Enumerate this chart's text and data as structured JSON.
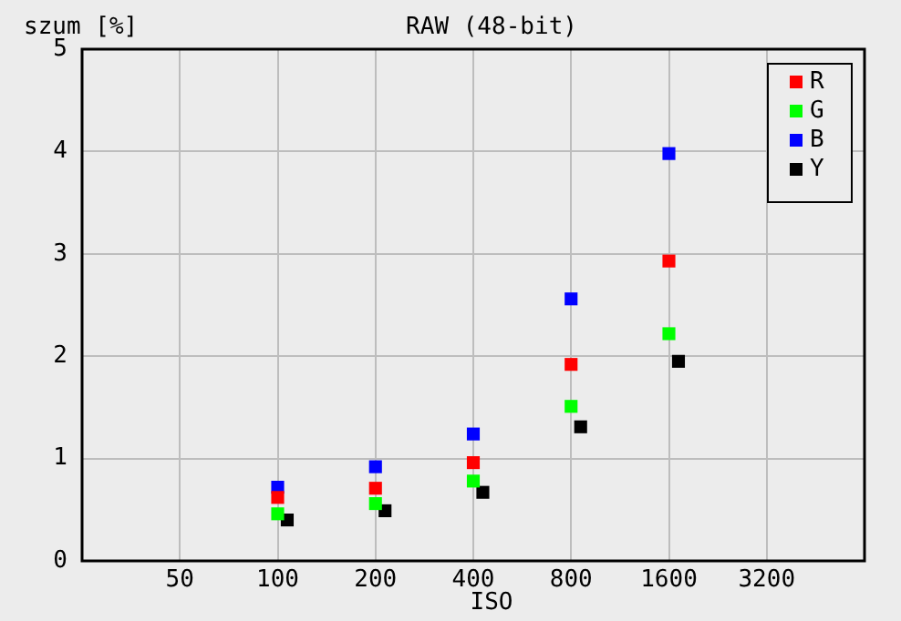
{
  "chart_data": {
    "type": "scatter",
    "title": "RAW (48-bit)",
    "xlabel": "ISO",
    "ylabel": "szum [%]",
    "x": [
      100,
      200,
      400,
      800,
      1600
    ],
    "series": [
      {
        "name": "R",
        "color": "#ff0000",
        "values": [
          0.62,
          0.71,
          0.96,
          1.92,
          2.93
        ]
      },
      {
        "name": "G",
        "color": "#00ff00",
        "values": [
          0.46,
          0.56,
          0.78,
          1.51,
          2.22
        ]
      },
      {
        "name": "B",
        "color": "#0000ff",
        "values": [
          0.72,
          0.92,
          1.24,
          2.56,
          3.98
        ]
      },
      {
        "name": "Y",
        "color": "#000000",
        "x": [
          107,
          214,
          428,
          856,
          1712
        ],
        "values": [
          0.4,
          0.49,
          0.67,
          1.31,
          1.95
        ]
      }
    ],
    "log": "x",
    "xlim": [
      25,
      6400
    ],
    "xticks": [
      50,
      100,
      200,
      400,
      800,
      1600,
      3200
    ],
    "ylim": [
      0,
      5
    ],
    "yticks": [
      0,
      1,
      2,
      3,
      4,
      5
    ],
    "grid": true,
    "legend": "top right",
    "marker": "square"
  }
}
